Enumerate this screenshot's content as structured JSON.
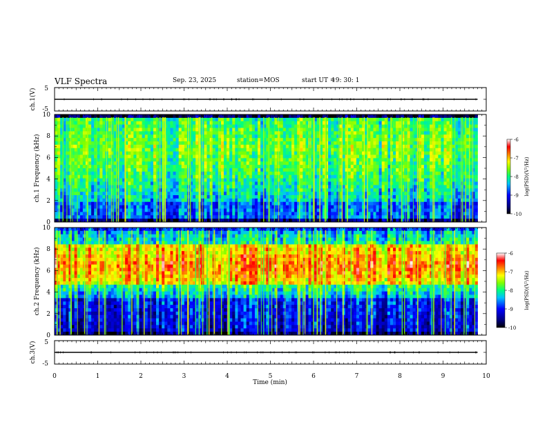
{
  "header": {
    "title": "VLF Spectra",
    "date": "Sep. 23, 2025",
    "station": "station=MOS",
    "start_label": "start  UT  =",
    "start_value": "19: 30: 1"
  },
  "chart_data": [
    {
      "type": "line",
      "name": "channel-1-voltage",
      "ylabel": "ch.1(V)",
      "xlim": [
        0,
        10
      ],
      "ylim": [
        -5,
        5
      ],
      "yticks": [
        "5",
        "-5"
      ],
      "series": [
        {
          "x": [
            0.0,
            9.8
          ],
          "y": [
            0.0,
            0.0
          ]
        }
      ]
    },
    {
      "type": "heatmap",
      "name": "channel-1-spectrogram",
      "ylabel": "ch.1 Frequency (kHz)",
      "xlim": [
        0,
        10
      ],
      "ylim": [
        0,
        10
      ],
      "yticks": [
        "0",
        "2",
        "4",
        "6",
        "8",
        "10"
      ],
      "data_extent_x_min": 9.8,
      "colorbar": {
        "label": "log(PSD)(V²/Hz)",
        "ticks": [
          "-6",
          "-7",
          "-8",
          "-9",
          "-10"
        ],
        "range": [
          -10,
          -6
        ]
      },
      "description": "Broadband noise with dominant green-to-cyan intensity between 2 and 9 kHz; dark blue near 0 kHz and 9.5–10 kHz; frequent vertical broadband spikes (sferics)."
    },
    {
      "type": "heatmap",
      "name": "channel-2-spectrogram",
      "ylabel": "ch.2 Frequency (kHz)",
      "xlim": [
        0,
        10
      ],
      "ylim": [
        0,
        10
      ],
      "yticks": [
        "0",
        "2",
        "4",
        "6",
        "8",
        "10"
      ],
      "data_extent_x_min": 9.8,
      "colorbar": {
        "label": "log(PSD)(V²/Hz)",
        "ticks": [
          "-6",
          "-7",
          "-8",
          "-9",
          "-10"
        ],
        "range": [
          -10,
          -6
        ]
      },
      "description": "Strong red/orange band between roughly 5 and 8 kHz, green/cyan elsewhere, dark blue below 4 kHz; frequent vertical broadband spikes."
    },
    {
      "type": "line",
      "name": "channel-3-voltage",
      "ylabel": "ch.3(V)",
      "xlim": [
        0,
        10
      ],
      "ylim": [
        -5,
        5
      ],
      "yticks": [
        "5",
        "-5"
      ],
      "series": [
        {
          "x": [
            0.0,
            9.8
          ],
          "y": [
            0.0,
            0.0
          ]
        }
      ]
    }
  ],
  "x_axis": {
    "label": "Time  (min)",
    "ticks": [
      "0",
      "1",
      "2",
      "3",
      "4",
      "5",
      "6",
      "7",
      "8",
      "9",
      "10"
    ]
  },
  "colors": {
    "scale": [
      "#00007f",
      "#0000ff",
      "#0080ff",
      "#00ffff",
      "#00ff80",
      "#80ff00",
      "#ffff00",
      "#ff8000",
      "#ff0000",
      "#ffffff"
    ]
  }
}
